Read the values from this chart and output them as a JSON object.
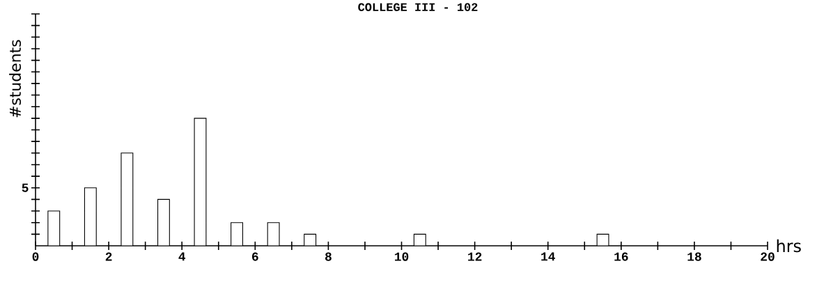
{
  "chart_data": {
    "type": "bar",
    "title": "COLLEGE III - 102",
    "xlabel": "hrs",
    "ylabel": "#students",
    "x": [
      0.5,
      1.5,
      2.5,
      3.5,
      4.5,
      5.5,
      6.5,
      7.5,
      10.5,
      15.5
    ],
    "values": [
      3,
      5,
      8,
      4,
      11,
      2,
      2,
      1,
      1,
      1
    ],
    "color": "#ffffff",
    "xlim": [
      0,
      20
    ],
    "xticks": [
      0,
      {
        "value": 1,
        "label": null
      },
      2,
      {
        "value": 3,
        "label": null
      },
      4,
      {
        "value": 5,
        "label": null
      },
      6,
      {
        "value": 7,
        "label": null
      },
      8,
      {
        "value": 9,
        "label": null
      },
      10,
      {
        "value": 11,
        "label": null
      },
      12,
      {
        "value": 13,
        "label": null
      },
      14,
      {
        "value": 15,
        "label": null
      },
      16,
      {
        "value": 17,
        "label": null
      },
      18,
      {
        "value": 19,
        "label": null
      },
      20
    ],
    "ylim": [
      0,
      20
    ],
    "yticks": [
      {
        "value": 1,
        "label": null
      },
      {
        "value": 2,
        "label": null
      },
      {
        "value": 3,
        "label": null
      },
      {
        "value": 4,
        "label": null
      },
      5,
      {
        "value": 6,
        "label": null
      },
      {
        "value": 7,
        "label": null
      },
      {
        "value": 8,
        "label": null
      },
      {
        "value": 9,
        "label": null
      },
      {
        "value": 10,
        "label": null
      },
      {
        "value": 11,
        "label": null
      },
      {
        "value": 12,
        "label": null
      },
      {
        "value": 13,
        "label": null
      },
      {
        "value": 14,
        "label": null
      },
      {
        "value": 15,
        "label": null
      },
      {
        "value": 16,
        "label": null
      },
      {
        "value": 17,
        "label": null
      },
      {
        "value": 18,
        "label": null
      },
      {
        "value": 19,
        "label": null
      },
      {
        "value": 20,
        "label": null
      }
    ],
    "grid": false
  }
}
